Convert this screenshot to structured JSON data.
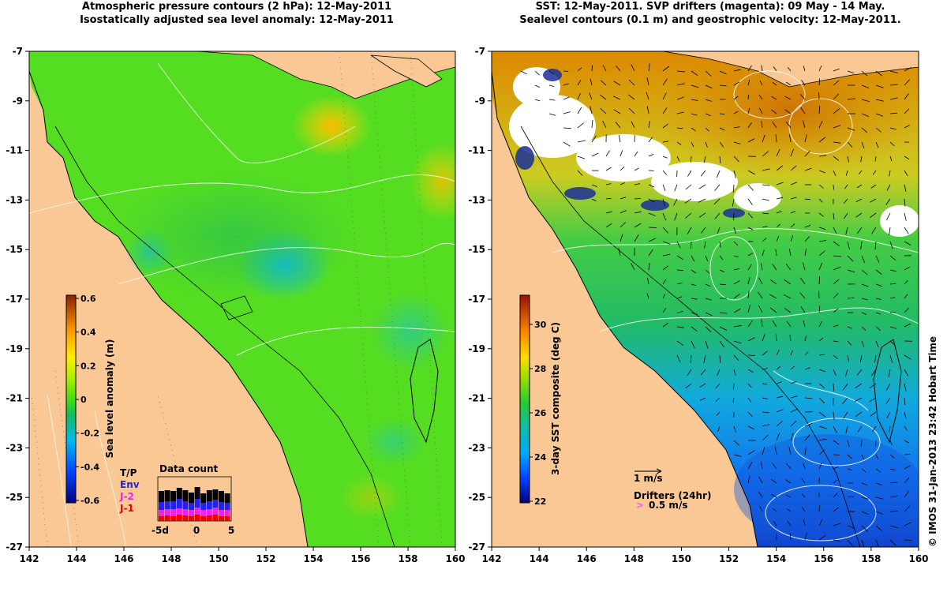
{
  "titles": {
    "left": [
      "Atmospheric pressure contours (2 hPa): 12-May-2011",
      "Isostatically adjusted sea level anomaly: 12-May-2011"
    ],
    "right": [
      "SST: 12-May-2011. SVP drifters (magenta): 09 May - 14 May.",
      "Sealevel contours (0.1 m) and geostrophic velocity: 12-May-2011."
    ]
  },
  "axes": {
    "lon_ticks": [
      "142",
      "144",
      "146",
      "148",
      "150",
      "152",
      "154",
      "156",
      "158",
      "160"
    ],
    "lat_ticks": [
      "-7",
      "-9",
      "-11",
      "-13",
      "-15",
      "-17",
      "-19",
      "-21",
      "-23",
      "-25",
      "-27"
    ],
    "lon_range": [
      142,
      160
    ],
    "lat_range": [
      -27,
      -7
    ]
  },
  "left_colorbar": {
    "label": "Sea level anomaly (m)",
    "ticks": [
      "0.6",
      "0.4",
      "0.2",
      "0",
      "-0.2",
      "-0.4",
      "-0.6"
    ],
    "range": [
      -0.6,
      0.6
    ]
  },
  "right_colorbar": {
    "label": "3-day SST composite (deg C)",
    "ticks": [
      "30",
      "28",
      "26",
      "24",
      "22"
    ],
    "range": [
      22,
      31
    ]
  },
  "data_count": {
    "title": "Data count",
    "legend": [
      "T/P",
      "Env",
      "J-2",
      "J-1"
    ],
    "legend_colors": [
      "#000000",
      "#2222ee",
      "#ee22ee",
      "#ee0000"
    ],
    "x_ticks": [
      "-5d",
      "0",
      "5"
    ]
  },
  "velocity_legend": {
    "label": "1 m/s"
  },
  "drifter_legend": {
    "title": "Drifters (24hr)",
    "label": "0.5 m/s",
    "color": "#ff55ff"
  },
  "copyright": "© IMOS 31-Jan-2013 23:42 Hobart Time",
  "colors": {
    "land": "#f9c895",
    "ocean_sla": "#55dd22",
    "sst_green": "#33cc55",
    "sst_blue": "#2299ee",
    "sst_orange": "#dd8800"
  }
}
